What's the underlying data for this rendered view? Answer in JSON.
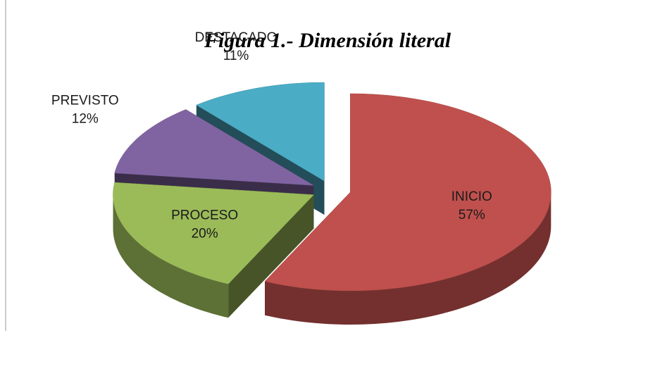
{
  "chart_data": {
    "type": "pie3d",
    "title": "Figura  1.- Dimensión literal",
    "categories": [
      "INICIO",
      "PROCESO",
      "PREVISTO",
      "DESTACADO"
    ],
    "values": [
      57,
      20,
      12,
      11
    ],
    "value_labels": [
      "57%",
      "20%",
      "12%",
      "11%"
    ],
    "colors": [
      "#c0504d",
      "#9bbb59",
      "#8064a2",
      "#4bacc6"
    ]
  }
}
